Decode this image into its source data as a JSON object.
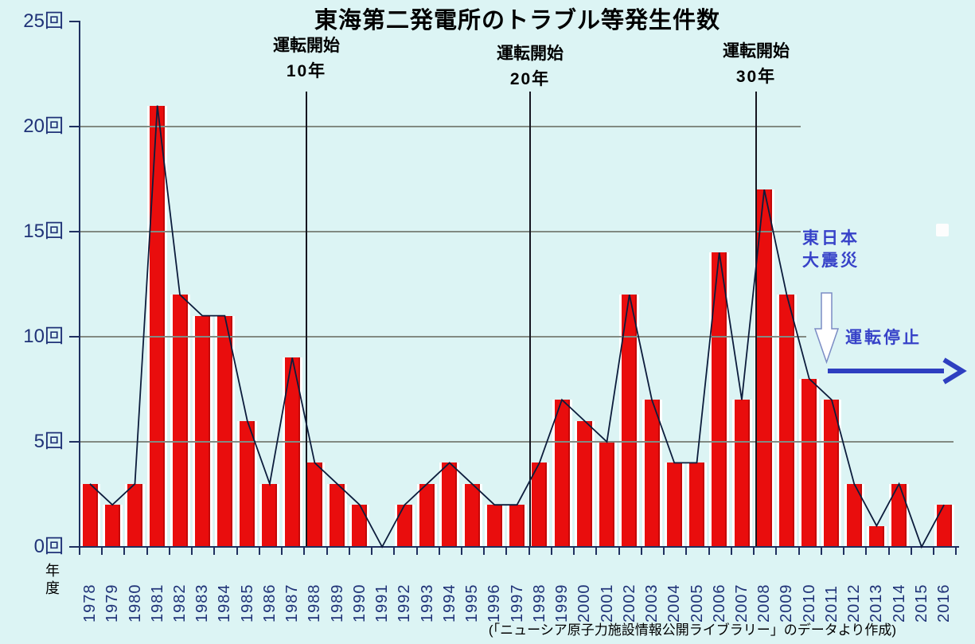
{
  "chart_data": {
    "type": "bar",
    "title": "東海第二発電所のトラブル等発生件数",
    "series_label": "トラブル等発生件数",
    "categories": [
      "1978",
      "1979",
      "1980",
      "1981",
      "1982",
      "1983",
      "1984",
      "1985",
      "1986",
      "1987",
      "1988",
      "1989",
      "1990",
      "1991",
      "1992",
      "1993",
      "1994",
      "1995",
      "1996",
      "1997",
      "1998",
      "1999",
      "2000",
      "2001",
      "2002",
      "2003",
      "2004",
      "2005",
      "2006",
      "2007",
      "2008",
      "2009",
      "2010",
      "2011",
      "2012",
      "2013",
      "2014",
      "2015",
      "2016"
    ],
    "values": [
      3,
      2,
      3,
      21,
      12,
      11,
      11,
      6,
      3,
      9,
      4,
      3,
      2,
      0,
      2,
      3,
      4,
      3,
      2,
      2,
      4,
      7,
      6,
      5,
      12,
      7,
      4,
      4,
      14,
      7,
      17,
      12,
      8,
      7,
      3,
      1,
      3,
      0,
      2
    ],
    "xlabel": "年度",
    "y_unit": "回",
    "y_ticks": [
      "0回",
      "5回",
      "10回",
      "15回",
      "20回",
      "25回"
    ],
    "ylim": [
      0,
      25
    ],
    "grid": "horizontal-gray",
    "legend": "none",
    "overlay_line": "values connected by dark navy trend line, dipping to 0 in 1991 and 2015",
    "annotations": {
      "start_marks": [
        {
          "line1": "運転開始",
          "line2": "10年",
          "between_years": "1987/1988"
        },
        {
          "line1": "運転開始",
          "line2": "20年",
          "between_years": "1997/1998"
        },
        {
          "line1": "運転開始",
          "line2": "30年",
          "between_years": "2007/2008"
        }
      ],
      "earthquake": {
        "line1": "東日本",
        "line2": "大震災",
        "arrow": "white down arrow at 2011"
      },
      "shutdown": {
        "label": "運転停止",
        "arrow": "blue right arrow from 2011 to chart edge"
      }
    },
    "source": "(「ニューシア原子力施設情報公開ライブラリー」のデータより作成)",
    "colors": {
      "background": "#dcf4f4",
      "bar": "#e90d0d",
      "trend_line": "#0c1c3c",
      "gridline": "#828a82",
      "axis": "#1f3060",
      "axis_text": "#203378",
      "annotation_blue": "#3742c8",
      "annotation_black": "#000000"
    }
  }
}
